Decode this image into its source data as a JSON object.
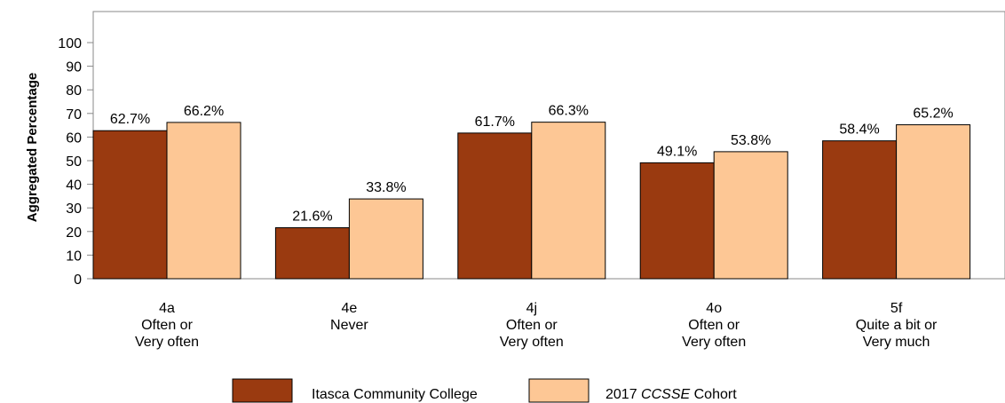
{
  "chart_data": {
    "type": "bar",
    "title": "",
    "xlabel": "",
    "ylabel": "Aggregated Percentage",
    "ylim": [
      0,
      100
    ],
    "yticks": [
      0,
      10,
      20,
      30,
      40,
      50,
      60,
      70,
      80,
      90,
      100
    ],
    "grid": false,
    "legend_position": "bottom",
    "categories": [
      [
        "4a",
        "Often or",
        "Very often"
      ],
      [
        "4e",
        "Never"
      ],
      [
        "4j",
        "Often or",
        "Very often"
      ],
      [
        "4o",
        "Often or",
        "Very often"
      ],
      [
        "5f",
        "Quite a bit or",
        "Very much"
      ]
    ],
    "series": [
      {
        "name": "Itasca Community College",
        "color": "#9a3a10",
        "values": [
          62.7,
          21.6,
          61.7,
          49.1,
          58.4
        ],
        "labels": [
          "62.7%",
          "21.6%",
          "61.7%",
          "49.1%",
          "58.4%"
        ]
      },
      {
        "name_parts": [
          "2017 ",
          "CCSSE",
          " Cohort"
        ],
        "color": "#fdc795",
        "values": [
          66.2,
          33.8,
          66.3,
          53.8,
          65.2
        ],
        "labels": [
          "66.2%",
          "33.8%",
          "66.3%",
          "53.8%",
          "65.2%"
        ]
      }
    ]
  }
}
